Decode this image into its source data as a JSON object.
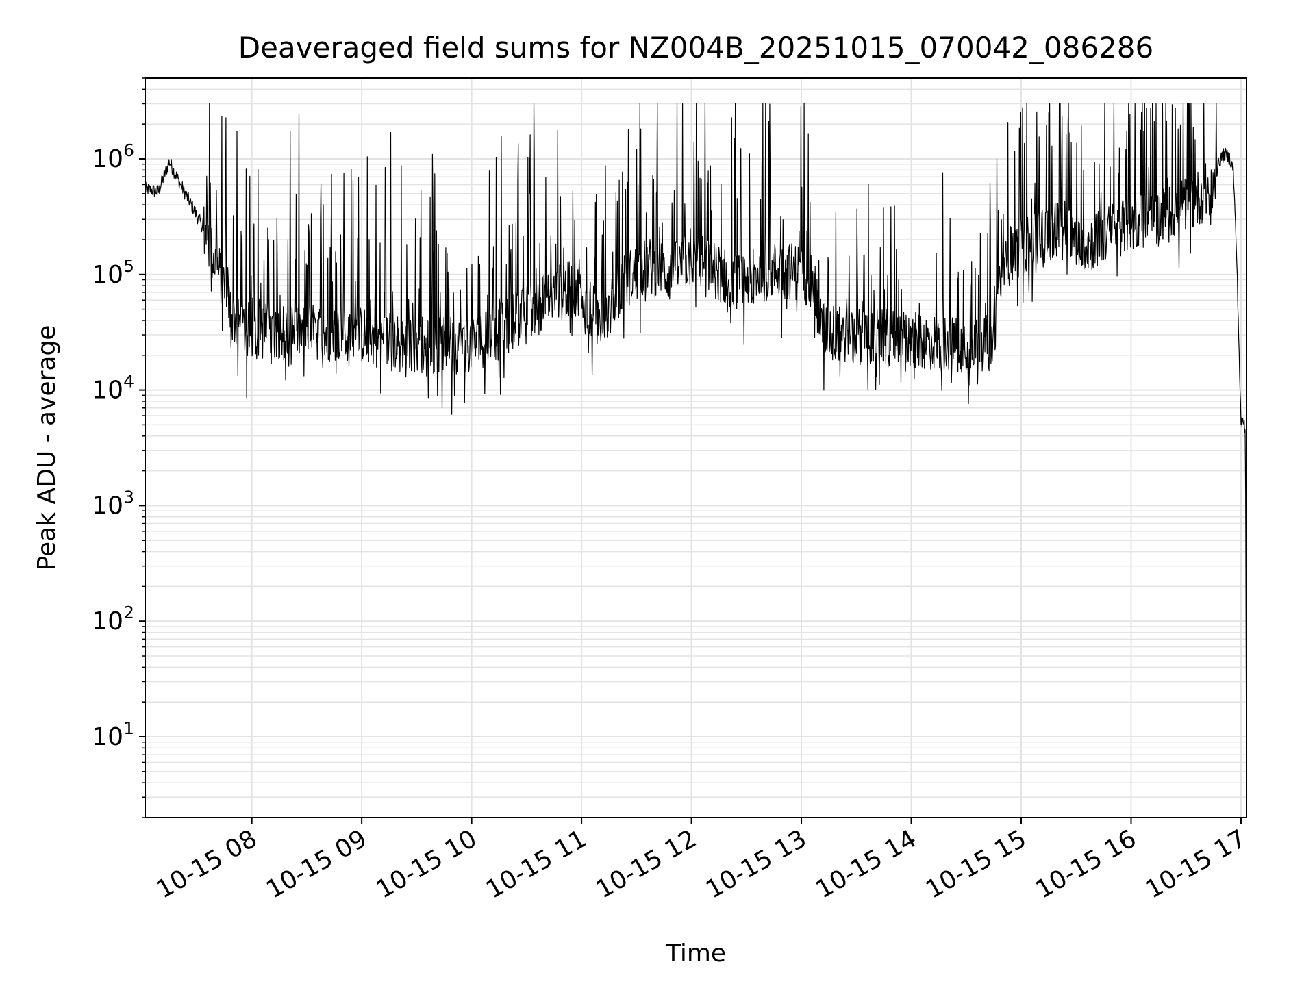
{
  "chart_data": {
    "type": "line",
    "title": "Deaveraged field sums for NZ004B_20251015_070042_086286",
    "xlabel": "Time",
    "ylabel": "Peak ADU - average",
    "yscale": "log",
    "ylim": [
      2,
      5000000
    ],
    "xlim_hours": [
      7.03,
      17.05
    ],
    "grid": "both",
    "line_color": "#000000",
    "x_ticks": [
      {
        "hour": 8,
        "label": "10-15 08"
      },
      {
        "hour": 9,
        "label": "10-15 09"
      },
      {
        "hour": 10,
        "label": "10-15 10"
      },
      {
        "hour": 11,
        "label": "10-15 11"
      },
      {
        "hour": 12,
        "label": "10-15 12"
      },
      {
        "hour": 13,
        "label": "10-15 13"
      },
      {
        "hour": 14,
        "label": "10-15 14"
      },
      {
        "hour": 15,
        "label": "10-15 15"
      },
      {
        "hour": 16,
        "label": "10-15 16"
      },
      {
        "hour": 17,
        "label": "10-15 17"
      }
    ],
    "y_ticks": [
      {
        "value": 10,
        "base": "10",
        "exp": "1"
      },
      {
        "value": 100,
        "base": "10",
        "exp": "2"
      },
      {
        "value": 1000,
        "base": "10",
        "exp": "3"
      },
      {
        "value": 10000,
        "base": "10",
        "exp": "4"
      },
      {
        "value": 100000,
        "base": "10",
        "exp": "5"
      },
      {
        "value": 1000000,
        "base": "10",
        "exp": "6"
      }
    ],
    "series": [
      {
        "name": "Peak ADU - average",
        "x_hours": [
          7.03,
          7.15,
          7.25,
          7.35,
          7.45,
          7.55,
          7.65,
          7.75,
          7.8,
          7.85,
          7.9,
          8.0,
          8.25,
          8.5,
          8.75,
          9.0,
          9.25,
          9.5,
          9.75,
          10.0,
          10.2,
          10.4,
          10.6,
          10.8,
          10.95,
          11.05,
          11.2,
          11.4,
          11.6,
          11.8,
          12.0,
          12.2,
          12.4,
          12.6,
          12.8,
          13.0,
          13.1,
          13.2,
          13.4,
          13.6,
          13.8,
          14.0,
          14.2,
          14.4,
          14.6,
          14.75,
          14.8,
          14.9,
          15.0,
          15.2,
          15.4,
          15.6,
          15.8,
          16.0,
          16.2,
          16.4,
          16.6,
          16.75,
          16.8,
          16.85,
          16.9,
          16.93,
          16.96,
          17.0,
          17.02,
          17.04,
          17.05
        ],
        "y_typical": [
          550000,
          520000,
          950000,
          600000,
          400000,
          260000,
          140000,
          80000,
          50000,
          40000,
          35000,
          32000,
          33000,
          32000,
          31000,
          30000,
          26000,
          25000,
          24000,
          25000,
          30000,
          40000,
          55000,
          70000,
          75000,
          50000,
          40000,
          90000,
          120000,
          100000,
          140000,
          110000,
          85000,
          100000,
          110000,
          105000,
          85000,
          33000,
          30000,
          29000,
          28000,
          27000,
          26000,
          25500,
          26000,
          25000,
          80000,
          150000,
          170000,
          220000,
          260000,
          180000,
          230000,
          280000,
          300000,
          350000,
          450000,
          600000,
          950000,
          1100000,
          1000000,
          800000,
          150000,
          5000,
          5500,
          4500,
          4
        ]
      }
    ]
  }
}
